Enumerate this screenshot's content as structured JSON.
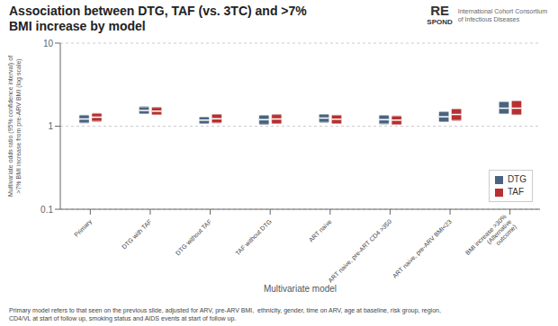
{
  "chart_data": {
    "type": "range",
    "title": "Association between DTG, TAF (vs. 3TC) and >7%",
    "subtitle": "BMI increase by model",
    "xlabel": "Multivariate model",
    "ylabel": "Multivariate odds ratio (95% confidence interval) of\n>7% BMI increase from pre-ARV BMI (log scale)",
    "categories": [
      "Primary",
      "DTG with TAF",
      "DTG without TAF",
      "TAF without DTG",
      "ART naive",
      "ART naive, pre-ART CD4 >350",
      "ART naive, pre-ARV BMI<23",
      "BMI increase >30%\n(Alternative\noutcome)"
    ],
    "series": [
      {
        "name": "DTG",
        "color": "#4A6480",
        "values": [
          1.22,
          1.55,
          1.18,
          1.2,
          1.25,
          1.2,
          1.3,
          1.65
        ],
        "lo": [
          1.1,
          1.42,
          1.08,
          1.06,
          1.12,
          1.07,
          1.14,
          1.42
        ],
        "hi": [
          1.35,
          1.7,
          1.28,
          1.34,
          1.38,
          1.34,
          1.48,
          1.95
        ]
      },
      {
        "name": "TAF",
        "color": "#B83030",
        "values": [
          1.28,
          1.52,
          1.23,
          1.22,
          1.21,
          1.18,
          1.38,
          1.65
        ],
        "lo": [
          1.15,
          1.38,
          1.1,
          1.08,
          1.08,
          1.05,
          1.18,
          1.38
        ],
        "hi": [
          1.42,
          1.67,
          1.38,
          1.37,
          1.35,
          1.32,
          1.6,
          2.0
        ]
      }
    ],
    "log": "y",
    "ylim": [
      0.1,
      10
    ],
    "yticks": [
      0.1,
      1,
      10
    ],
    "grid": true,
    "legend": "lower right",
    "annotations": [
      "Primary model refers to that seen on the previous slide, adjusted for ARV, pre-ARV BMI,  ethnicity, gender, time on ARV, age at baseline, risk group, region,\nCD4/VL at start of follow up, smoking status and AIDS events at start of follow up.",
      "RE",
      "SPOND",
      "International Cohort Consortium",
      "of Infectious Diseases"
    ]
  }
}
